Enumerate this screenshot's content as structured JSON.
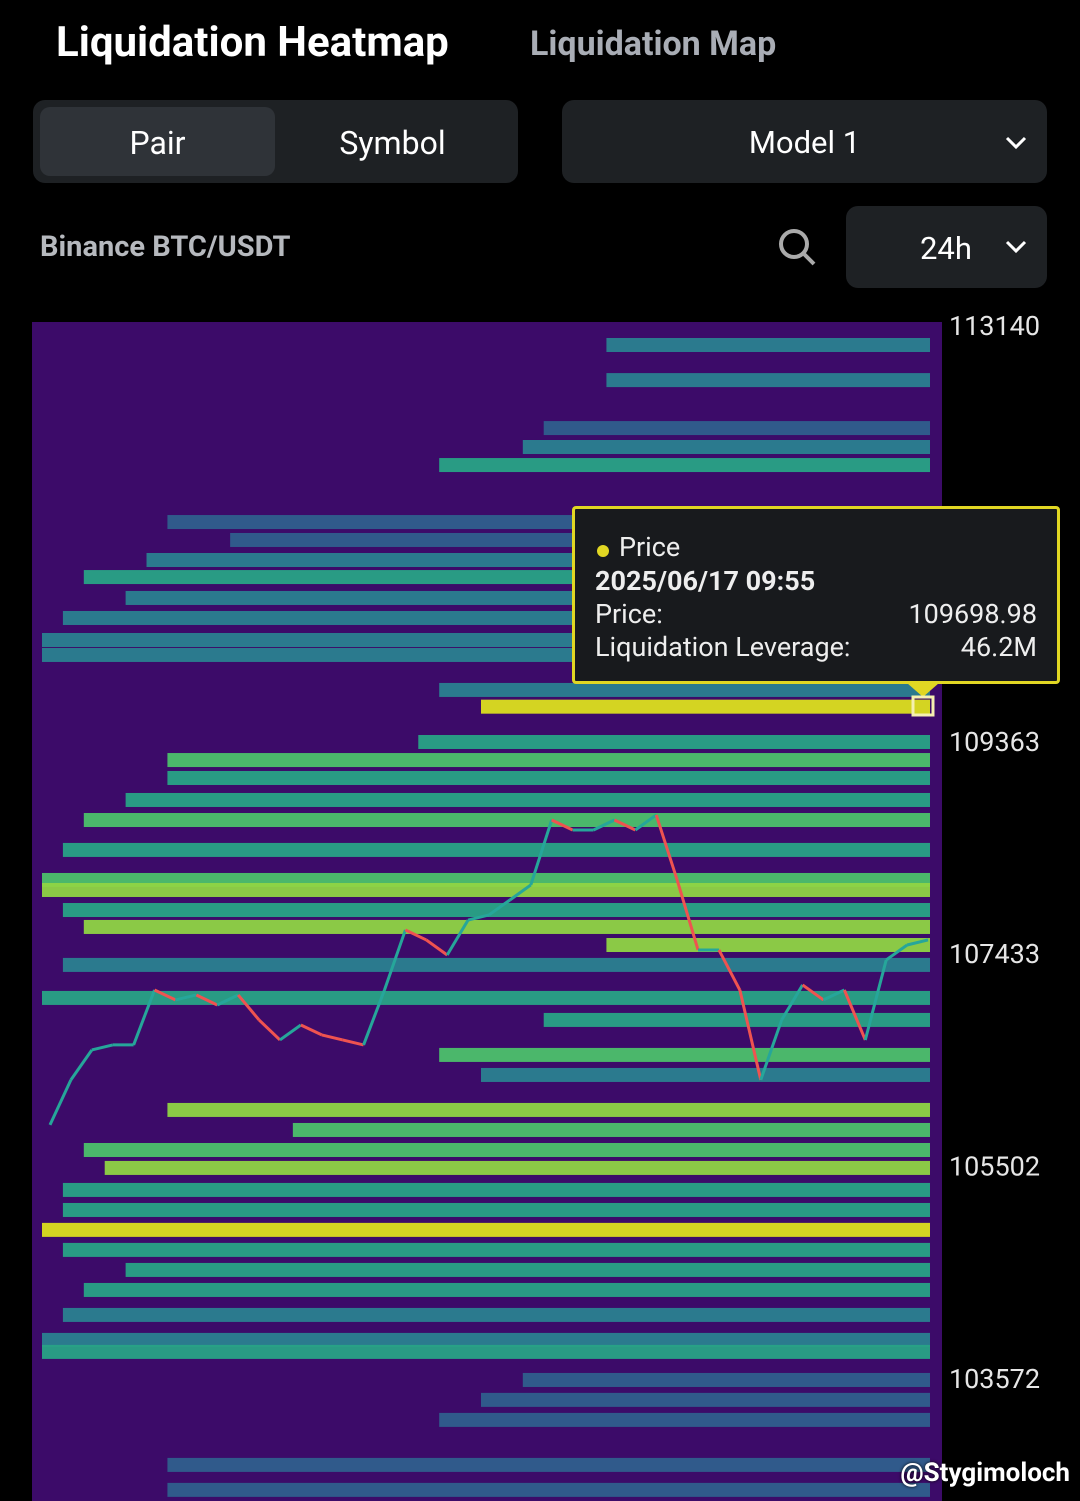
{
  "header": {
    "title": "Liquidation Heatmap",
    "alt_tab": "Liquidation Map"
  },
  "controls": {
    "mode_tabs": [
      "Pair",
      "Symbol"
    ],
    "model": "Model 1",
    "pair": "Binance BTC/USDT",
    "range": "24h"
  },
  "chart_data": {
    "type": "heatmap",
    "ylim": [
      102480,
      113195
    ],
    "yticks": [
      103572,
      105502,
      107433,
      109363,
      113140
    ],
    "background": "#3c0b69",
    "values": [
      105898,
      106307,
      106579,
      106625,
      106625,
      107124,
      107034,
      107079,
      106988,
      107079,
      106852,
      106670,
      106806,
      106716,
      106670,
      106625,
      107124,
      107670,
      107579,
      107442,
      107760,
      107806,
      107942,
      108079,
      108669,
      108578,
      108578,
      108669,
      108578,
      108715,
      108124,
      107488,
      107488,
      107124,
      106307,
      106852,
      107170,
      107034,
      107124,
      106670,
      107397,
      107533,
      107579
    ],
    "up_color": "#26a69a",
    "down_color": "#ef5350",
    "bands": [
      {
        "price": 112986,
        "start": 27,
        "level": 10
      },
      {
        "price": 112667,
        "start": 27,
        "level": 8
      },
      {
        "price": 112231,
        "start": 24,
        "level": 6
      },
      {
        "price": 112059,
        "start": 23,
        "level": 8
      },
      {
        "price": 111895,
        "start": 19,
        "level": 12
      },
      {
        "price": 111377,
        "start": 6,
        "level": 6
      },
      {
        "price": 111214,
        "start": 9,
        "level": 5
      },
      {
        "price": 111032,
        "start": 5,
        "level": 10
      },
      {
        "price": 110877,
        "start": 2,
        "level": 15
      },
      {
        "price": 110687,
        "start": 4,
        "level": 10
      },
      {
        "price": 110505,
        "start": 1,
        "level": 8
      },
      {
        "price": 110305,
        "start": 0,
        "level": 8
      },
      {
        "price": 110169,
        "start": 0,
        "level": 10
      },
      {
        "price": 109851,
        "start": 19,
        "level": 8
      },
      {
        "price": 109699,
        "start": 21,
        "level": 46.2
      },
      {
        "price": 109378,
        "start": 18,
        "level": 14
      },
      {
        "price": 109214,
        "start": 6,
        "level": 18
      },
      {
        "price": 109051,
        "start": 6,
        "level": 16
      },
      {
        "price": 108851,
        "start": 4,
        "level": 12
      },
      {
        "price": 108669,
        "start": 2,
        "level": 20
      },
      {
        "price": 108397,
        "start": 1,
        "level": 12
      },
      {
        "price": 108124,
        "start": 0,
        "level": 18
      },
      {
        "price": 108033,
        "start": 0,
        "level": 25
      },
      {
        "price": 107851,
        "start": 1,
        "level": 12
      },
      {
        "price": 107697,
        "start": 2,
        "level": 30
      },
      {
        "price": 107533,
        "start": 27,
        "level": 28
      },
      {
        "price": 107352,
        "start": 1,
        "level": 10
      },
      {
        "price": 107052,
        "start": 0,
        "level": 14
      },
      {
        "price": 106852,
        "start": 24,
        "level": 12
      },
      {
        "price": 106534,
        "start": 19,
        "level": 22
      },
      {
        "price": 106352,
        "start": 21,
        "level": 10
      },
      {
        "price": 106034,
        "start": 6,
        "level": 32
      },
      {
        "price": 105852,
        "start": 12,
        "level": 20
      },
      {
        "price": 105670,
        "start": 2,
        "level": 24
      },
      {
        "price": 105507,
        "start": 3,
        "level": 28
      },
      {
        "price": 105307,
        "start": 1,
        "level": 14
      },
      {
        "price": 105125,
        "start": 1,
        "level": 12
      },
      {
        "price": 104944,
        "start": 0,
        "level": 40
      },
      {
        "price": 104762,
        "start": 1,
        "level": 16
      },
      {
        "price": 104580,
        "start": 4,
        "level": 12
      },
      {
        "price": 104398,
        "start": 2,
        "level": 14
      },
      {
        "price": 104171,
        "start": 1,
        "level": 10
      },
      {
        "price": 103944,
        "start": 0,
        "level": 9
      },
      {
        "price": 103835,
        "start": 0,
        "level": 12
      },
      {
        "price": 103580,
        "start": 23,
        "level": 7
      },
      {
        "price": 103399,
        "start": 21,
        "level": 7
      },
      {
        "price": 103217,
        "start": 19,
        "level": 6
      },
      {
        "price": 102808,
        "start": 6,
        "level": 6
      },
      {
        "price": 102581,
        "start": 6,
        "level": 6
      }
    ],
    "tooltip": {
      "heading": "Price",
      "date": "2025/06/17 09:55",
      "price_label": "Price:",
      "price": "109698.98",
      "leverage_label": "Liquidation Leverage:",
      "leverage": "46.2M"
    }
  },
  "watermark": "@Stygimoloch"
}
